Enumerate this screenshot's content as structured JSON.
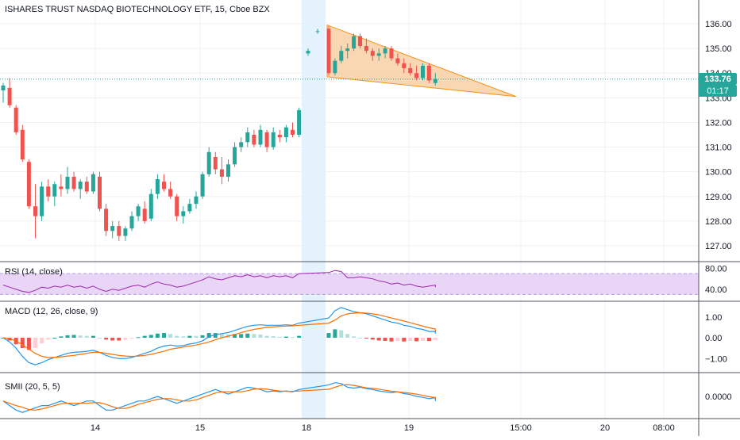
{
  "header": {
    "title": "ISHARES TRUST NASDAQ BIOTECHNOLOGY ETF, 15, Cboe BZX"
  },
  "colors": {
    "up": "#26a69a",
    "down": "#ef5350",
    "grid": "#eef1f5",
    "axis_line": "#50535e",
    "triangle_fill": "#f8c99a",
    "triangle_stroke": "#f7931e",
    "price_line": "#26a69a",
    "rsi_line": "#9c27b0",
    "rsi_band": "#e9d5f5",
    "macd_line": "#2196f3",
    "signal_line": "#ff6d00",
    "hist_pos_strong": "#26a69a",
    "hist_pos_weak": "#b2dfdb",
    "hist_neg_strong": "#ef5350",
    "hist_neg_weak": "#ffcdd2",
    "session_highlight": "#e3f2fd"
  },
  "price_axis": {
    "ticks": [
      "136.00",
      "135.00",
      "134.00",
      "133.00",
      "132.00",
      "131.00",
      "130.00",
      "129.00",
      "128.00",
      "127.00"
    ],
    "last_price": "133.76",
    "countdown": "01:17"
  },
  "time_axis": {
    "ticks": [
      "14",
      "15",
      "18",
      "19",
      "15:00",
      "20",
      "08:00"
    ]
  },
  "panes": {
    "rsi": {
      "label": "RSI (14, close)",
      "ticks": [
        "80.00",
        "40.00"
      ]
    },
    "macd": {
      "label": "MACD (12, 26, close, 9)",
      "ticks": [
        "1.00",
        "0.00",
        "−1.00"
      ]
    },
    "smii": {
      "label": "SMII (20, 5, 5)",
      "ticks": [
        "0.0000"
      ]
    }
  },
  "chart_data": [
    {
      "type": "candlestick",
      "title": "ISHARES TRUST NASDAQ BIOTECHNOLOGY ETF, 15, Cboe BZX",
      "ylim": [
        126.6,
        136.6
      ],
      "x_labels": [
        "14",
        "15",
        "18",
        "19"
      ],
      "last_price": 133.76,
      "ohlc_approx": [
        [
          133.3,
          133.6,
          132.8,
          133.5
        ],
        [
          133.4,
          133.8,
          132.6,
          132.7
        ],
        [
          132.6,
          132.7,
          131.5,
          131.6
        ],
        [
          131.7,
          131.9,
          130.4,
          130.5
        ],
        [
          130.4,
          130.5,
          128.5,
          128.6
        ],
        [
          128.6,
          129.5,
          127.3,
          128.2
        ],
        [
          128.2,
          129.6,
          128.0,
          129.4
        ],
        [
          129.4,
          129.7,
          128.8,
          129.0
        ],
        [
          129.0,
          129.6,
          128.6,
          129.5
        ],
        [
          129.4,
          129.9,
          129.0,
          129.3
        ],
        [
          129.3,
          130.2,
          129.1,
          129.8
        ],
        [
          129.8,
          130.0,
          129.2,
          129.3
        ],
        [
          129.3,
          129.7,
          128.9,
          129.6
        ],
        [
          129.6,
          129.8,
          129.1,
          129.2
        ],
        [
          129.2,
          130.0,
          129.1,
          129.9
        ],
        [
          129.8,
          130.0,
          128.4,
          128.5
        ],
        [
          128.5,
          128.7,
          127.4,
          127.6
        ],
        [
          127.6,
          128.0,
          127.3,
          127.8
        ],
        [
          127.8,
          128.0,
          127.2,
          127.4
        ],
        [
          127.4,
          127.8,
          127.2,
          127.7
        ],
        [
          127.7,
          128.4,
          127.6,
          128.2
        ],
        [
          128.2,
          128.7,
          128.0,
          128.6
        ],
        [
          128.5,
          128.8,
          127.9,
          128.0
        ],
        [
          128.1,
          129.3,
          128.0,
          129.1
        ],
        [
          129.1,
          129.9,
          128.9,
          129.7
        ],
        [
          129.6,
          129.9,
          129.2,
          129.3
        ],
        [
          129.3,
          129.6,
          128.9,
          129.0
        ],
        [
          129.0,
          129.1,
          128.0,
          128.2
        ],
        [
          128.2,
          128.6,
          127.9,
          128.4
        ],
        [
          128.4,
          128.9,
          128.3,
          128.7
        ],
        [
          128.7,
          129.2,
          128.5,
          129.0
        ],
        [
          129.0,
          130.0,
          128.9,
          129.9
        ],
        [
          129.9,
          131.0,
          129.8,
          130.8
        ],
        [
          130.6,
          130.8,
          129.9,
          130.1
        ],
        [
          130.1,
          130.6,
          129.5,
          129.8
        ],
        [
          129.8,
          130.5,
          129.6,
          130.3
        ],
        [
          130.3,
          131.2,
          130.2,
          131.0
        ],
        [
          131.0,
          131.4,
          130.8,
          131.2
        ],
        [
          131.2,
          131.8,
          131.0,
          131.6
        ],
        [
          131.5,
          131.7,
          131.0,
          131.1
        ],
        [
          131.1,
          131.9,
          131.0,
          131.7
        ],
        [
          131.6,
          131.7,
          130.8,
          131.0
        ],
        [
          131.0,
          131.8,
          130.9,
          131.6
        ],
        [
          131.5,
          131.7,
          131.2,
          131.4
        ],
        [
          131.4,
          131.9,
          131.2,
          131.8
        ],
        [
          131.7,
          132.0,
          131.4,
          131.5
        ],
        [
          131.5,
          132.6,
          131.4,
          132.5
        ],
        [
          134.8,
          135.0,
          134.7,
          134.9
        ],
        [
          135.7,
          135.8,
          135.6,
          135.7
        ],
        [
          135.8,
          135.9,
          133.9,
          134.0
        ],
        [
          134.0,
          134.6,
          133.9,
          134.5
        ],
        [
          134.5,
          135.1,
          134.4,
          134.9
        ],
        [
          134.9,
          135.2,
          134.6,
          135.0
        ],
        [
          135.0,
          135.6,
          134.9,
          135.5
        ],
        [
          135.5,
          135.6,
          135.0,
          135.1
        ],
        [
          135.1,
          135.4,
          134.8,
          134.9
        ],
        [
          134.9,
          135.0,
          134.5,
          134.7
        ],
        [
          134.7,
          135.0,
          134.5,
          134.8
        ],
        [
          134.8,
          135.1,
          134.6,
          135.0
        ],
        [
          135.0,
          135.1,
          134.5,
          134.6
        ],
        [
          134.6,
          134.8,
          134.3,
          134.4
        ],
        [
          134.4,
          134.6,
          134.0,
          134.2
        ],
        [
          134.2,
          134.4,
          133.9,
          134.0
        ],
        [
          134.0,
          134.3,
          133.7,
          133.8
        ],
        [
          133.8,
          134.4,
          133.7,
          134.3
        ],
        [
          134.3,
          134.4,
          133.6,
          133.7
        ],
        [
          133.6,
          134.0,
          133.5,
          133.76
        ]
      ]
    },
    {
      "type": "line",
      "name": "RSI (14, close)",
      "ylim": [
        20,
        100
      ],
      "values": [
        48,
        44,
        40,
        36,
        34,
        38,
        44,
        42,
        46,
        44,
        48,
        44,
        46,
        42,
        46,
        40,
        36,
        40,
        38,
        42,
        46,
        48,
        44,
        50,
        54,
        50,
        48,
        44,
        46,
        50,
        54,
        58,
        64,
        60,
        58,
        62,
        66,
        64,
        68,
        64,
        66,
        62,
        66,
        64,
        66,
        62,
        70,
        72,
        76,
        74,
        62,
        62,
        64,
        62,
        60,
        56,
        54,
        50,
        52,
        48,
        50,
        46,
        44,
        46,
        48,
        44,
        46
      ]
    },
    {
      "type": "line",
      "name": "MACD (12, 26, close, 9)",
      "ylim": [
        -1.7,
        1.7
      ],
      "macd": [
        0.0,
        -0.2,
        -0.5,
        -0.9,
        -1.2,
        -1.3,
        -1.2,
        -1.05,
        -0.95,
        -0.85,
        -0.75,
        -0.7,
        -0.68,
        -0.65,
        -0.6,
        -0.7,
        -0.85,
        -0.95,
        -1.0,
        -1.0,
        -0.95,
        -0.85,
        -0.75,
        -0.65,
        -0.5,
        -0.4,
        -0.35,
        -0.4,
        -0.38,
        -0.3,
        -0.25,
        -0.15,
        0.05,
        0.15,
        0.2,
        0.25,
        0.35,
        0.45,
        0.55,
        0.6,
        0.62,
        0.6,
        0.6,
        0.6,
        0.62,
        0.6,
        0.7,
        0.95,
        1.3,
        1.45,
        1.35,
        1.25,
        1.2,
        1.15,
        1.05,
        0.95,
        0.85,
        0.75,
        0.7,
        0.6,
        0.55,
        0.45,
        0.4,
        0.3,
        0.3,
        0.25,
        0.2
      ],
      "signal": [
        0.0,
        -0.05,
        -0.15,
        -0.35,
        -0.55,
        -0.75,
        -0.9,
        -0.95,
        -0.95,
        -0.92,
        -0.88,
        -0.85,
        -0.8,
        -0.75,
        -0.7,
        -0.7,
        -0.75,
        -0.8,
        -0.85,
        -0.88,
        -0.9,
        -0.88,
        -0.85,
        -0.8,
        -0.72,
        -0.65,
        -0.55,
        -0.5,
        -0.45,
        -0.4,
        -0.35,
        -0.28,
        -0.2,
        -0.1,
        0.0,
        0.08,
        0.15,
        0.25,
        0.33,
        0.4,
        0.45,
        0.5,
        0.52,
        0.55,
        0.56,
        0.57,
        0.6,
        0.7,
        0.85,
        1.05,
        1.15,
        1.18,
        1.2,
        1.18,
        1.15,
        1.1,
        1.02,
        0.95,
        0.88,
        0.8,
        0.72,
        0.64,
        0.56,
        0.48,
        0.42,
        0.36,
        0.3
      ]
    },
    {
      "type": "line",
      "name": "SMII (20, 5, 5)",
      "ylim": [
        -0.05,
        0.04
      ],
      "values": [
        -0.01,
        -0.02,
        -0.03,
        -0.035,
        -0.03,
        -0.025,
        -0.02,
        -0.02,
        -0.015,
        -0.01,
        -0.015,
        -0.02,
        -0.015,
        -0.01,
        -0.01,
        -0.02,
        -0.03,
        -0.03,
        -0.025,
        -0.02,
        -0.015,
        -0.01,
        -0.01,
        -0.005,
        0.0,
        -0.005,
        -0.01,
        -0.015,
        -0.01,
        -0.005,
        0.0,
        0.005,
        0.01,
        0.015,
        0.01,
        0.005,
        0.01,
        0.015,
        0.02,
        0.018,
        0.015,
        0.01,
        0.012,
        0.01,
        0.012,
        0.01,
        0.015,
        0.025,
        0.03,
        0.028,
        0.02,
        0.018,
        0.02,
        0.017,
        0.015,
        0.012,
        0.01,
        0.008,
        0.01,
        0.006,
        0.004,
        0.0,
        -0.002,
        -0.005,
        -0.003,
        -0.008,
        -0.01
      ]
    }
  ]
}
